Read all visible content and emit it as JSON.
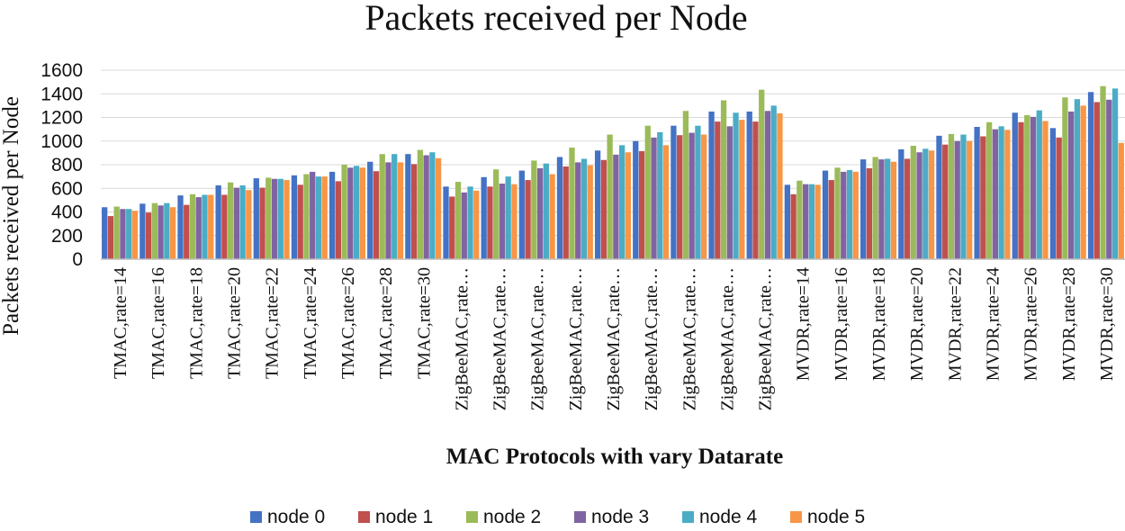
{
  "chart_data": {
    "type": "bar",
    "title": "Packets received per Node",
    "xlabel": "MAC Protocols with vary Datarate",
    "ylabel": "Packets received per Node",
    "ylim": [
      0,
      1600
    ],
    "yticks": [
      0,
      200,
      400,
      600,
      800,
      1000,
      1200,
      1400,
      1600
    ],
    "grid": true,
    "legend_position": "bottom",
    "categories": [
      "TMAC,rate=14",
      "TMAC,rate=16",
      "TMAC,rate=18",
      "TMAC,rate=20",
      "TMAC,rate=22",
      "TMAC,rate=24",
      "TMAC,rate=26",
      "TMAC,rate=28",
      "TMAC,rate=30",
      "ZigBeeMAC,rate…",
      "ZigBeeMAC,rate…",
      "ZigBeeMAC,rate…",
      "ZigBeeMAC,rate…",
      "ZigBeeMAC,rate…",
      "ZigBeeMAC,rate…",
      "ZigBeeMAC,rate…",
      "ZigBeeMAC,rate…",
      "ZigBeeMAC,rate…",
      "MVDR,rate=14",
      "MVDR,rate=16",
      "MVDR,rate=18",
      "MVDR,rate=20",
      "MVDR,rate=22",
      "MVDR,rate=24",
      "MVDR,rate=26",
      "MVDR,rate=28",
      "MVDR,rate=30"
    ],
    "series": [
      {
        "name": "node 0",
        "color": "#4472C4",
        "values": [
          440,
          470,
          540,
          625,
          685,
          710,
          740,
          825,
          890,
          615,
          695,
          750,
          865,
          920,
          1000,
          1130,
          1250,
          1250,
          630,
          750,
          845,
          930,
          1045,
          1120,
          1240,
          1110,
          1415
        ]
      },
      {
        "name": "node 1",
        "color": "#C0504D",
        "values": [
          365,
          395,
          460,
          545,
          605,
          630,
          660,
          745,
          805,
          530,
          615,
          670,
          785,
          840,
          915,
          1050,
          1165,
          1165,
          550,
          670,
          770,
          850,
          970,
          1040,
          1160,
          1030,
          1330
        ]
      },
      {
        "name": "node 2",
        "color": "#9BBB59",
        "values": [
          445,
          475,
          550,
          650,
          690,
          720,
          800,
          890,
          925,
          655,
          760,
          835,
          945,
          1055,
          1130,
          1255,
          1345,
          1435,
          665,
          775,
          865,
          960,
          1060,
          1160,
          1220,
          1370,
          1465
        ]
      },
      {
        "name": "node 3",
        "color": "#8064A2",
        "values": [
          425,
          455,
          525,
          605,
          680,
          740,
          775,
          820,
          880,
          565,
          640,
          770,
          820,
          885,
          1030,
          1070,
          1125,
          1255,
          635,
          740,
          845,
          905,
          1000,
          1100,
          1205,
          1250,
          1350
        ]
      },
      {
        "name": "node 4",
        "color": "#4BACC6",
        "values": [
          425,
          475,
          545,
          625,
          680,
          700,
          790,
          890,
          905,
          615,
          700,
          810,
          850,
          965,
          1075,
          1130,
          1240,
          1300,
          635,
          755,
          850,
          935,
          1055,
          1125,
          1260,
          1355,
          1445
        ]
      },
      {
        "name": "node 5",
        "color": "#F79646",
        "values": [
          410,
          440,
          545,
          585,
          670,
          700,
          775,
          820,
          855,
          580,
          635,
          720,
          795,
          905,
          965,
          1055,
          1180,
          1235,
          630,
          740,
          825,
          920,
          1000,
          1095,
          1170,
          1300,
          985
        ]
      }
    ]
  }
}
